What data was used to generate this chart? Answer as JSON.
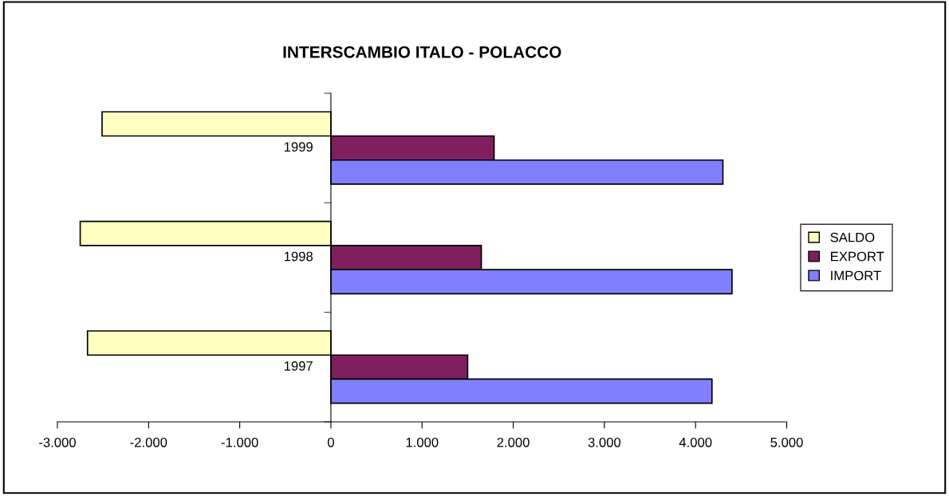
{
  "chart_data": {
    "type": "bar",
    "orientation": "horizontal",
    "title": "INTERSCAMBIO ITALO - POLACCO",
    "categories": [
      "1999",
      "1998",
      "1997"
    ],
    "series": [
      {
        "name": "SALDO",
        "color": "#ffffc0",
        "values": [
          -2510,
          -2750,
          -2670
        ]
      },
      {
        "name": "EXPORT",
        "color": "#7f1f5f",
        "values": [
          1790,
          1650,
          1500
        ]
      },
      {
        "name": "IMPORT",
        "color": "#8080ff",
        "values": [
          4300,
          4400,
          4180
        ]
      }
    ],
    "xlim": [
      -3000,
      5000
    ],
    "xticks": [
      {
        "value": -3000,
        "label": "-3.000"
      },
      {
        "value": -2000,
        "label": "-2.000"
      },
      {
        "value": -1000,
        "label": "-1.000"
      },
      0,
      {
        "value": 1000,
        "label": "1.000"
      },
      {
        "value": 2000,
        "label": "2.000"
      },
      {
        "value": 3000,
        "label": "3.000"
      },
      {
        "value": 4000,
        "label": "4.000"
      },
      {
        "value": 5000,
        "label": "5.000"
      }
    ],
    "grid": false,
    "legend": "right"
  }
}
